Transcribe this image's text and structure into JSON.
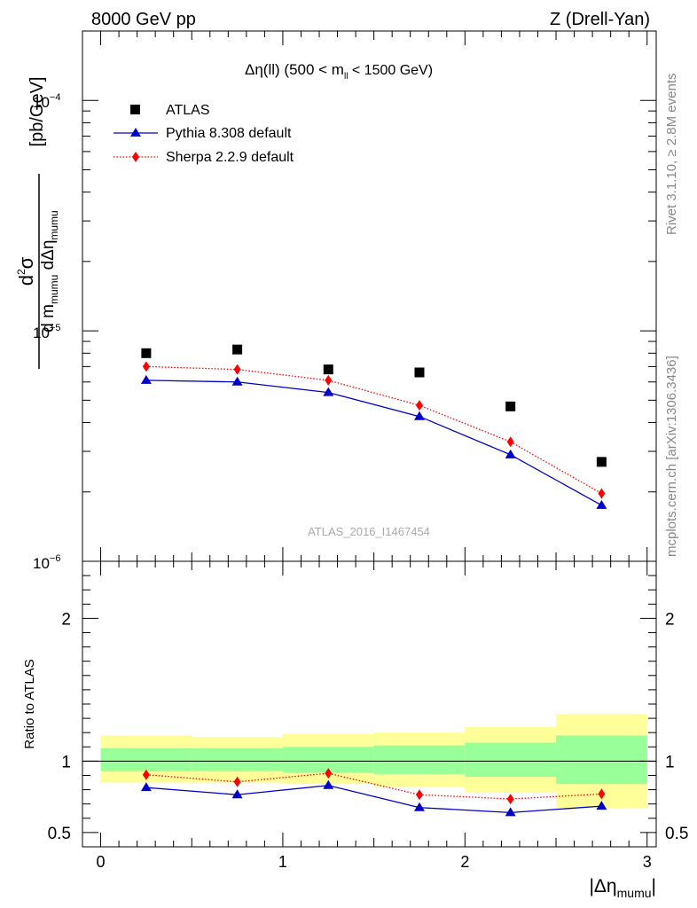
{
  "header": {
    "left": "8000 GeV pp",
    "right": "Z (Drell-Yan)"
  },
  "side": {
    "rivet": "Rivet 3.1.10, ≥ 2.8M events",
    "mcplots": "mcplots.cern.ch [arXiv:1306.3436]"
  },
  "chart_data": [
    {
      "type": "scatter",
      "panel": "main",
      "title": "Δη(ll) (500 < m_ll < 1500 GeV)",
      "title_parts": {
        "pre": "Δη(ll) (500 < m",
        "sub": "ll",
        "post": " < 1500 GeV)"
      },
      "ylabel_parts": {
        "num_d": "d",
        "num_sup": "2",
        "num_sigma": "σ",
        "den": "d m",
        "den_sub1": "mumu",
        "den_mid": " dΔη",
        "den_sub2": "mumu",
        "unit": "[pb/GeV]"
      },
      "yscale": "log",
      "ylim": [
        1e-06,
        0.0002
      ],
      "xlim": [
        -0.1,
        3.05
      ],
      "y_ticklabels": [
        {
          "base": "10",
          "exp": "−6",
          "value": 1e-06
        },
        {
          "base": "10",
          "exp": "−5",
          "value": 1e-05
        },
        {
          "base": "10",
          "exp": "−4",
          "value": 0.0001
        }
      ],
      "watermark": "ATLAS_2016_I1467454",
      "legend": [
        {
          "label": "ATLAS",
          "marker": "square",
          "color": "#000000"
        },
        {
          "label": "Pythia 8.308 default",
          "marker": "triangle",
          "color": "#0000cc",
          "line": "solid"
        },
        {
          "label": "Sherpa 2.2.9 default",
          "marker": "diamond",
          "color": "#ff0000",
          "line": "dotted"
        }
      ],
      "legend_position": "top-left",
      "x": [
        0.25,
        0.75,
        1.25,
        1.75,
        2.25,
        2.75
      ],
      "series": [
        {
          "name": "ATLAS",
          "values": [
            8e-06,
            8.3e-06,
            6.8e-06,
            6.6e-06,
            4.7e-06,
            2.7e-06
          ]
        },
        {
          "name": "Pythia 8.308 default",
          "values": [
            6.1e-06,
            6e-06,
            5.4e-06,
            4.25e-06,
            2.9e-06,
            1.75e-06
          ]
        },
        {
          "name": "Sherpa 2.2.9 default",
          "values": [
            7e-06,
            6.8e-06,
            6.1e-06,
            4.75e-06,
            3.3e-06,
            1.97e-06
          ]
        }
      ]
    },
    {
      "type": "scatter",
      "panel": "ratio",
      "ylabel": "Ratio to ATLAS",
      "xlabel_parts": {
        "pre": "|Δη",
        "sub": "mumu",
        "post": "|"
      },
      "ylim": [
        0.4,
        2.4
      ],
      "xlim": [
        -0.1,
        3.05
      ],
      "x_ticklabels": [
        "0",
        "1",
        "2",
        "3"
      ],
      "y_ticklabels": [
        "0.5",
        "1",
        "2"
      ],
      "bins": [
        [
          0,
          0.5
        ],
        [
          0.5,
          1.0
        ],
        [
          1.0,
          1.5
        ],
        [
          1.5,
          2.0
        ],
        [
          2.0,
          2.5
        ],
        [
          2.5,
          3.0
        ]
      ],
      "band_outer": [
        [
          0.85,
          1.18
        ],
        [
          0.85,
          1.17
        ],
        [
          0.84,
          1.19
        ],
        [
          0.82,
          1.2
        ],
        [
          0.78,
          1.24
        ],
        [
          0.67,
          1.33
        ]
      ],
      "band_inner": [
        [
          0.93,
          1.09
        ],
        [
          0.93,
          1.09
        ],
        [
          0.92,
          1.1
        ],
        [
          0.91,
          1.11
        ],
        [
          0.89,
          1.13
        ],
        [
          0.84,
          1.18
        ]
      ],
      "x": [
        0.25,
        0.75,
        1.25,
        1.75,
        2.25,
        2.75
      ],
      "series": [
        {
          "name": "Pythia 8.308 default",
          "values": [
            0.815,
            0.765,
            0.83,
            0.675,
            0.64,
            0.685
          ]
        },
        {
          "name": "Sherpa 2.2.9 default",
          "values": [
            0.905,
            0.855,
            0.915,
            0.765,
            0.735,
            0.77
          ]
        }
      ]
    }
  ]
}
